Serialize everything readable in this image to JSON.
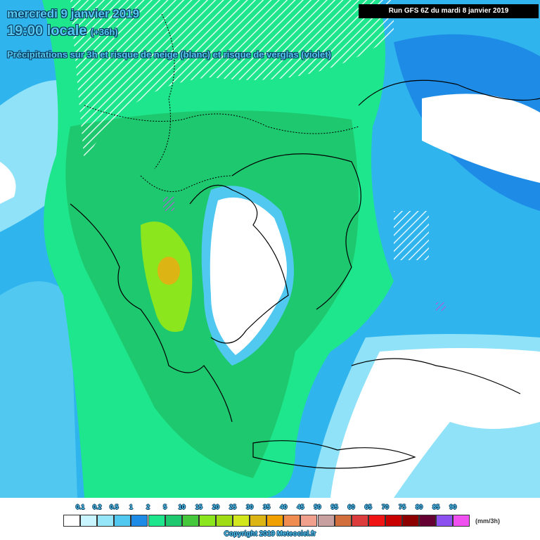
{
  "header": {
    "date": "mercredi 9 janvier 2019",
    "time": "19:00 locale",
    "lead": "(+36h)",
    "description": "Précipitations sur 3h et risque de neige (blanc) et risque de verglas (violet)",
    "run": "Run GFS 6Z du mardi 8 janvier 2019"
  },
  "legend": {
    "labels": [
      "0.1",
      "0.2",
      "0.5",
      "1",
      "2",
      "5",
      "10",
      "15",
      "20",
      "25",
      "30",
      "35",
      "40",
      "45",
      "50",
      "55",
      "60",
      "65",
      "70",
      "75",
      "80",
      "85",
      "90"
    ],
    "colors": [
      "#ffffff",
      "#c8f5ff",
      "#96e6fa",
      "#50c8f0",
      "#1e8ce6",
      "#1ee68c",
      "#1ec86e",
      "#46c83c",
      "#8ce61e",
      "#a0dc14",
      "#d2e61e",
      "#dcb414",
      "#f0a000",
      "#f08c50",
      "#f0a08c",
      "#c8a0a0",
      "#d26e3c",
      "#dc3c3c",
      "#f01414",
      "#c80000",
      "#8c0000",
      "#640032",
      "#8c50f0",
      "#f050f0"
    ],
    "unit": "(mm/3h)"
  },
  "footer": {
    "copyright": "Copyright 2019 Meteociel.fr"
  }
}
